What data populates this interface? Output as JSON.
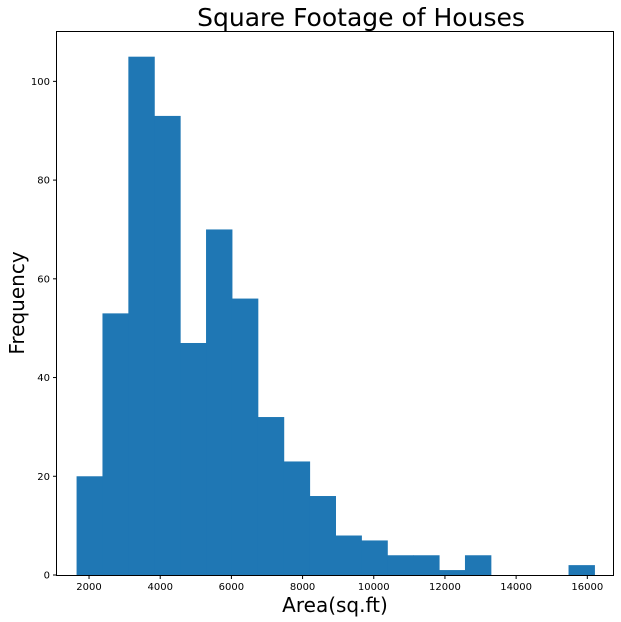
{
  "chart_data": {
    "type": "bar",
    "title": "Square Footage of Houses",
    "xlabel": "Area(sq.ft)",
    "ylabel": "Frequency",
    "xlim": [
      1100,
      16750
    ],
    "ylim": [
      0,
      110
    ],
    "x_ticks": [
      2000,
      4000,
      6000,
      8000,
      10000,
      12000,
      14000,
      16000
    ],
    "y_ticks": [
      0,
      20,
      40,
      60,
      80,
      100
    ],
    "bin_edges": [
      1650,
      2377.5,
      3105,
      3832.5,
      4560,
      5287.5,
      6015,
      6742.5,
      7470,
      8197.5,
      8925,
      9652.5,
      10380,
      11107.5,
      11835,
      12562.5,
      13290,
      14017.5,
      14745,
      15472.5,
      16200
    ],
    "values": [
      20,
      53,
      105,
      93,
      47,
      70,
      56,
      32,
      23,
      16,
      8,
      7,
      4,
      4,
      1,
      4,
      0,
      0,
      0,
      2
    ],
    "grid": false,
    "bar_color": "#1f77b4"
  }
}
